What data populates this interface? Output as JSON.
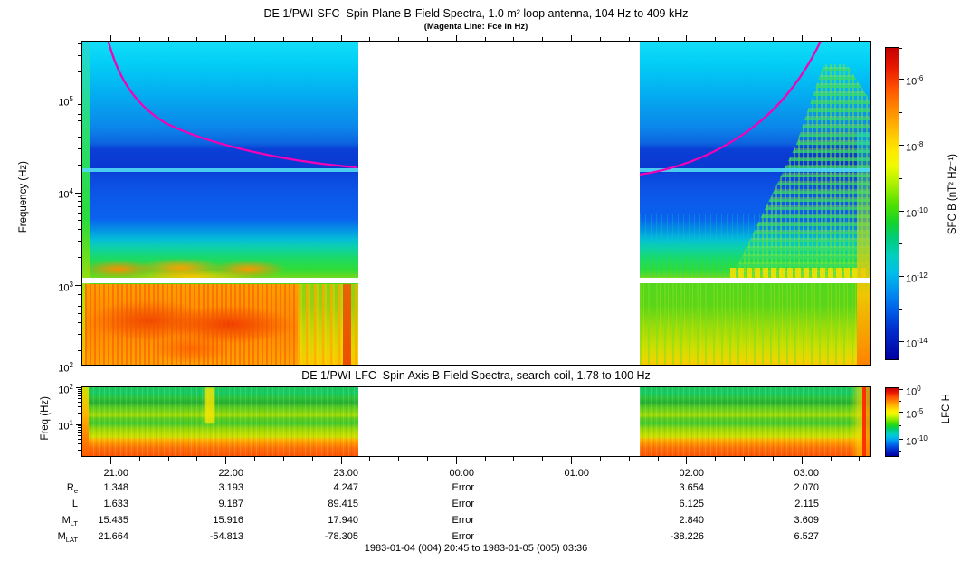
{
  "page": {
    "caption": "1983-01-04 (004) 20:45 to 1983-01-05 (005) 03:36"
  },
  "panel1": {
    "title": "DE 1/PWI-SFC  Spin Plane B-Field Spectra, 1.0 m² loop antenna, 104 Hz to 409 kHz",
    "subtitle": "(Magenta Line: Fce in Hz)",
    "ylabel": "Frequency (Hz)",
    "yticks": [
      {
        "b": "10",
        "e": "5"
      },
      {
        "b": "10",
        "e": "4"
      },
      {
        "b": "10",
        "e": "3"
      },
      {
        "b": "10",
        "e": "2"
      }
    ],
    "colorbar": {
      "label": "SFC B (nT² Hz⁻¹)",
      "ticks": [
        {
          "b": "10",
          "e": "-6"
        },
        {
          "b": "10",
          "e": "-8"
        },
        {
          "b": "10",
          "e": "-10"
        },
        {
          "b": "10",
          "e": "-12"
        },
        {
          "b": "10",
          "e": "-14"
        }
      ]
    }
  },
  "panel2": {
    "title": "DE 1/PWI-LFC  Spin Axis B-Field Spectra, search coil, 1.78 to 100 Hz",
    "ylabel": "Freq (Hz)",
    "yticks": [
      {
        "b": "10",
        "e": "2"
      },
      {
        "b": "10",
        "e": "1"
      }
    ],
    "colorbar": {
      "label": "LFC H",
      "ticks": [
        {
          "b": "10",
          "e": "0"
        },
        {
          "b": "10",
          "e": "-5"
        },
        {
          "b": "10",
          "e": "-10"
        }
      ]
    }
  },
  "xaxis": {
    "times": [
      "21:00",
      "22:00",
      "23:00",
      "00:00",
      "01:00",
      "02:00",
      "03:00"
    ]
  },
  "ephemeris": {
    "rows": [
      {
        "label": "R",
        "sub": "e",
        "values": [
          "1.348",
          "3.193",
          "4.247",
          "Error",
          "",
          "3.654",
          "2.070"
        ]
      },
      {
        "label": "L",
        "sub": "",
        "values": [
          "1.633",
          "9.187",
          "89.415",
          "Error",
          "",
          "6.125",
          "2.115"
        ]
      },
      {
        "label": "M",
        "sub": "LT",
        "values": [
          "15.435",
          "15.916",
          "17.940",
          "Error",
          "",
          "2.840",
          "3.609"
        ]
      },
      {
        "label": "M",
        "sub": "LAT",
        "values": [
          "21.664",
          "-54.813",
          "-78.305",
          "Error",
          "",
          "-38.226",
          "6.527"
        ]
      }
    ]
  },
  "colors": {
    "fce_line": "#F202B6",
    "axis": "#000000",
    "background": "#FFFFFF"
  },
  "chart_data": [
    {
      "type": "heatmap",
      "instrument": "DE 1/PWI-SFC",
      "title": "DE 1/PWI-SFC  Spin Plane B-Field Spectra, 1.0 m2 loop antenna, 104 Hz to 409 kHz",
      "subtitle": "(Magenta Line: Fce in Hz)",
      "x_start": "1983-01-04 20:45",
      "x_end": "1983-01-05 03:36",
      "x_tick_labels": [
        "21:00",
        "22:00",
        "23:00",
        "00:00",
        "01:00",
        "02:00",
        "03:00"
      ],
      "ylabel": "Frequency (Hz)",
      "y_scale": "log",
      "y_range_hz": [
        104,
        409000
      ],
      "y_tick_labels": [
        "10^2",
        "10^3",
        "10^4",
        "10^5"
      ],
      "colorbar_label": "SFC B (nT^2 Hz^-1)",
      "colorbar_scale": "log",
      "colorbar_tick_labels": [
        "10^-6",
        "10^-8",
        "10^-10",
        "10^-12",
        "10^-14"
      ],
      "colormap": "rainbow (red=high intensity, dark blue=low)",
      "data_gap_utc": [
        "~23:10",
        "~01:35"
      ],
      "overlays": [
        "magenta Fce line falling from >400 kHz at ~20:50 to ~18 kHz at the data gap, then rising from ~15 kHz at ~01:40 to >400 kHz by ~03:20",
        "narrow cyan horizontal band near 16 kHz across both data segments",
        "white horizontal stripe just above 1 kHz",
        "intense red/orange broadband emission below ~1.5 kHz from 20:45 to ~22:40",
        "green/yellow speckled emission wedge along the Fce line 02:30-03:30",
        "orange/red column at the right edge near 03:30"
      ]
    },
    {
      "type": "heatmap",
      "instrument": "DE 1/PWI-LFC",
      "title": "DE 1/PWI-LFC  Spin Axis B-Field Spectra, search coil, 1.78 to 100 Hz",
      "x_start": "1983-01-04 20:45",
      "x_end": "1983-01-05 03:36",
      "ylabel": "Freq (Hz)",
      "y_scale": "log",
      "y_range_hz": [
        1.78,
        100
      ],
      "y_tick_labels": [
        "10^1",
        "10^2"
      ],
      "colorbar_label": "LFC H",
      "colorbar_scale": "log",
      "colorbar_tick_labels": [
        "10^0",
        "10^-5",
        "10^-10"
      ],
      "colormap": "rainbow (red=high intensity, dark blue=low)",
      "data_gap_utc": [
        "~23:10",
        "~01:35"
      ],
      "pattern": "horizontal banding: green at higher frequencies grading through yellow to orange/red at the lowest frequencies; yellow/red intensification at far right edge"
    }
  ]
}
